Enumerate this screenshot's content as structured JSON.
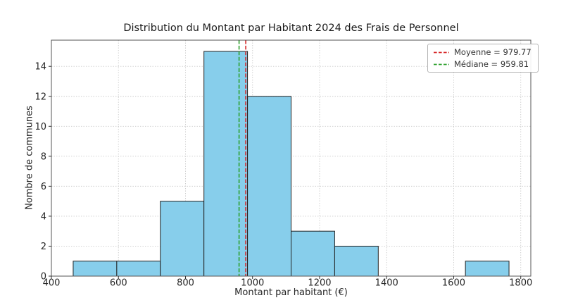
{
  "chart_data": {
    "type": "bar",
    "title": "Distribution du Montant par Habitant 2024 des Frais de Personnel",
    "xlabel": "Montant par habitant (€)",
    "ylabel": "Nombre de communes",
    "bin_edges": [
      465,
      595,
      725,
      855,
      985,
      1115,
      1245,
      1375,
      1505,
      1635,
      1765
    ],
    "counts": [
      1,
      1,
      5,
      15,
      12,
      3,
      2,
      0,
      0,
      1
    ],
    "xlim": [
      400,
      1830
    ],
    "ylim": [
      0,
      15.75
    ],
    "xticks": [
      400,
      600,
      800,
      1000,
      1200,
      1400,
      1600,
      1800
    ],
    "yticks": [
      0,
      2,
      4,
      6,
      8,
      10,
      12,
      14
    ],
    "grid": true,
    "bar_fill": "#87CEEB",
    "bar_edge": "#222222",
    "legend_position": "top-right",
    "reference_lines": [
      {
        "name": "moyenne",
        "label": "Moyenne = 979.77",
        "value": 979.77,
        "color": "#d62728",
        "style": "dashed"
      },
      {
        "name": "mediane",
        "label": "Médiane = 959.81",
        "value": 959.81,
        "color": "#2ca02c",
        "style": "dashed"
      }
    ]
  }
}
